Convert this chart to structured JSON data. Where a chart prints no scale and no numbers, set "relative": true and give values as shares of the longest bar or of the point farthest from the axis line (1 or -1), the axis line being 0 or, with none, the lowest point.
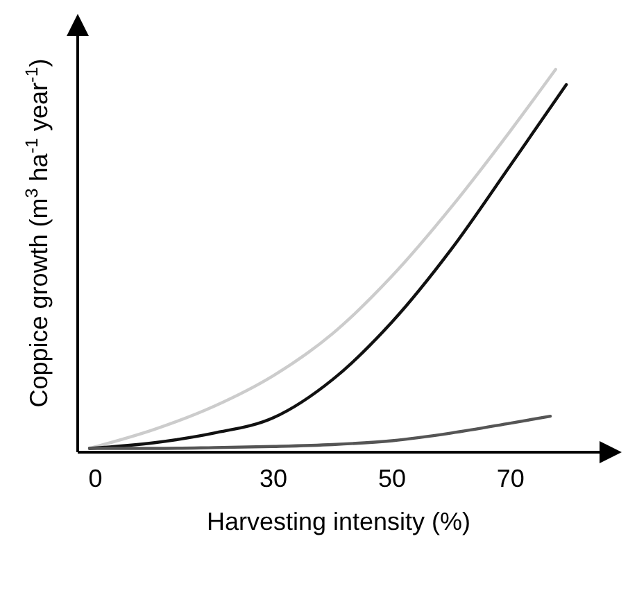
{
  "chart_data": {
    "type": "line",
    "relative": true,
    "xlabel": "Harvesting intensity (%)",
    "ylabel": "Coppice growth (m$^{3}$ ha$^{-1}$ year$^{-1}$)",
    "xlim": [
      -3,
      85
    ],
    "xticks": [
      0,
      30,
      50,
      70
    ],
    "line_style": "solid",
    "series": [
      {
        "color": "#cccccc",
        "x": [
          -1,
          10,
          20,
          30,
          40,
          50,
          60,
          70,
          77.6
        ],
        "values": [
          0.01,
          0.06,
          0.12,
          0.2,
          0.31,
          0.46,
          0.64,
          0.84,
          1
        ]
      },
      {
        "color": "#111111",
        "x": [
          -1,
          10,
          20,
          30,
          40,
          50,
          60,
          70,
          79.4
        ],
        "values": [
          0.01,
          0.025,
          0.05,
          0.09,
          0.19,
          0.34,
          0.53,
          0.75,
          0.96
        ]
      },
      {
        "color": "#555555",
        "x": [
          -1,
          10,
          20,
          30,
          40,
          50,
          60,
          70,
          76.7
        ],
        "values": [
          0.01,
          0.01,
          0.012,
          0.015,
          0.02,
          0.03,
          0.05,
          0.076,
          0.094
        ]
      }
    ]
  }
}
